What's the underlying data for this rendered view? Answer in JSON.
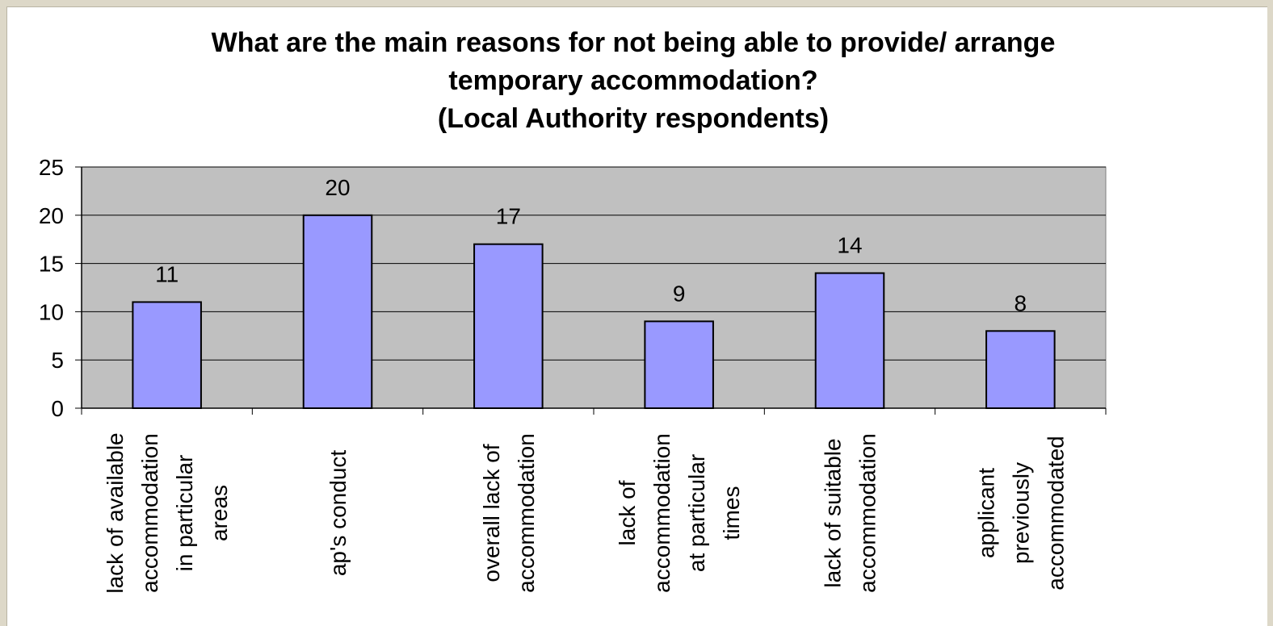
{
  "chart_data": {
    "type": "bar",
    "title_lines": [
      "What are the main reasons for not being able to provide/ arrange",
      "temporary accommodation?",
      "(Local Authority respondents)"
    ],
    "categories": [
      "lack of available accommodation in particular areas",
      "ap's conduct",
      "overall lack of accommodation",
      "lack of accommodation at particular times",
      "lack of suitable accommodation",
      "applicant previously accommodated"
    ],
    "category_label_lines": [
      [
        "lack of available",
        "accommodation",
        "in particular",
        "areas"
      ],
      [
        "ap's conduct"
      ],
      [
        "overall lack of",
        "accommodation"
      ],
      [
        "lack of",
        "accommodation",
        "at particular",
        "times"
      ],
      [
        "lack of suitable",
        "accommodation"
      ],
      [
        "applicant",
        "previously",
        "accommodated"
      ]
    ],
    "values": [
      11,
      20,
      17,
      9,
      14,
      8
    ],
    "data_labels": [
      "11",
      "20",
      "17",
      "9",
      "14",
      "8"
    ],
    "ylim": [
      0,
      25
    ],
    "y_ticks": [
      "0",
      "5",
      "10",
      "15",
      "20",
      "25"
    ],
    "xlabel": "",
    "ylabel": "",
    "grid": true,
    "legend": "none",
    "colors": {
      "bar_fill": "#9999ff",
      "bar_stroke": "#000000",
      "plot_bg": "#c0c0c0",
      "grid": "#000000",
      "page_bg": "#ffffff",
      "outer_bg": "#ddd8c8"
    }
  }
}
